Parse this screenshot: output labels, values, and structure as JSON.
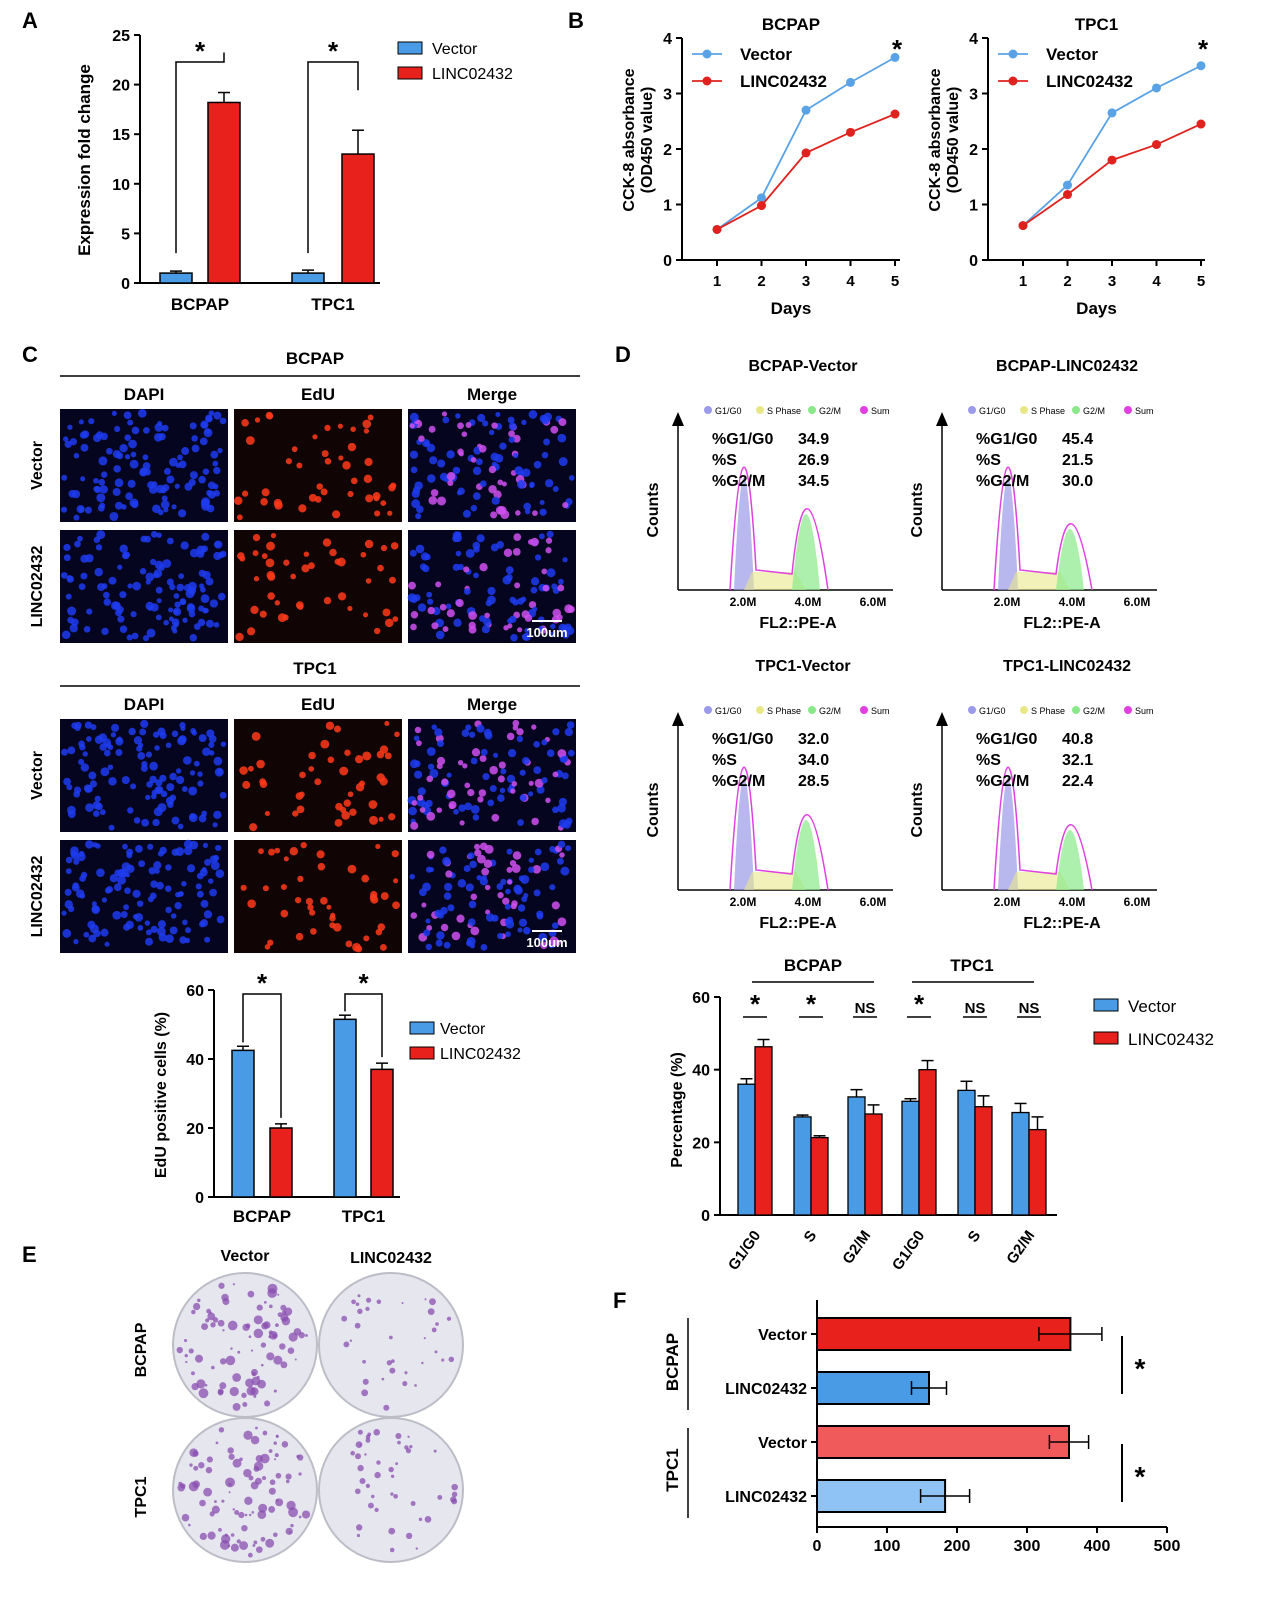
{
  "colors": {
    "vector": "#4a9be6",
    "linc": "#e8211d",
    "linc_light": "#f05a5a",
    "vector_light": "#8fc3f5",
    "line_vec": "#5aa2e6",
    "line_linc": "#e0221e",
    "dapi": "#1e3cf0",
    "edu": "#ff3a1a",
    "merge": "#d050f0",
    "dish": "#8a4db0"
  },
  "panel_letters": [
    "A",
    "B",
    "C",
    "D",
    "E",
    "F"
  ],
  "panelA": {
    "chart_data": {
      "type": "bar",
      "ylabel": "Expression fold change",
      "ylim": [
        0,
        25
      ],
      "yticks": [
        "0",
        "5",
        "10",
        "15",
        "20",
        "25"
      ],
      "categories": [
        "BCPAP",
        "TPC1"
      ],
      "series": [
        {
          "name": "Vector",
          "values": [
            1.0,
            1.0
          ],
          "errors": [
            0.2,
            0.3
          ]
        },
        {
          "name": "LINC02432",
          "values": [
            18.2,
            13.0
          ],
          "errors": [
            1.0,
            2.4
          ]
        }
      ],
      "sig": [
        "*",
        "*"
      ],
      "legend_placement": "top-right"
    }
  },
  "panelB": {
    "chart_data": [
      {
        "type": "line",
        "title": "BCPAP",
        "xlabel": "Days",
        "ylabel_line1": "CCK-8 absorbance",
        "ylabel_line2": "(OD450 value)",
        "ylim": [
          0,
          4
        ],
        "yticks": [
          "0",
          "1",
          "2",
          "3",
          "4"
        ],
        "x": [
          "1",
          "2",
          "3",
          "4",
          "5"
        ],
        "series": [
          {
            "name": "Vector",
            "values": [
              0.55,
              1.12,
              2.7,
              3.2,
              3.65
            ]
          },
          {
            "name": "LINC02432",
            "values": [
              0.55,
              0.98,
              1.93,
              2.3,
              2.63
            ]
          }
        ],
        "sig": "*",
        "legend_placement": "top-left"
      },
      {
        "type": "line",
        "title": "TPC1",
        "xlabel": "Days",
        "ylabel_line1": "CCK-8 absorbance",
        "ylabel_line2": "(OD450 value)",
        "ylim": [
          0,
          4
        ],
        "yticks": [
          "0",
          "1",
          "2",
          "3",
          "4"
        ],
        "x": [
          "1",
          "2",
          "3",
          "4",
          "5"
        ],
        "series": [
          {
            "name": "Vector",
            "values": [
              0.62,
              1.35,
              2.65,
              3.1,
              3.5
            ]
          },
          {
            "name": "LINC02432",
            "values": [
              0.62,
              1.18,
              1.8,
              2.08,
              2.45
            ]
          }
        ],
        "sig": "*",
        "legend_placement": "top-left"
      }
    ]
  },
  "panelC": {
    "groups": [
      {
        "title": "BCPAP",
        "columns": [
          "DAPI",
          "EdU",
          "Merge"
        ],
        "rows": [
          "Vector",
          "LINC02432"
        ],
        "scale": "100um"
      },
      {
        "title": "TPC1",
        "columns": [
          "DAPI",
          "EdU",
          "Merge"
        ],
        "rows": [
          "Vector",
          "LINC02432"
        ],
        "scale": "100um"
      }
    ],
    "chart_data": {
      "type": "bar",
      "ylabel": "EdU positive cells (%)",
      "ylim": [
        0,
        60
      ],
      "yticks": [
        "0",
        "20",
        "40",
        "60"
      ],
      "categories": [
        "BCPAP",
        "TPC1"
      ],
      "series": [
        {
          "name": "Vector",
          "values": [
            42.5,
            51.5
          ],
          "errors": [
            1.2,
            1.2
          ]
        },
        {
          "name": "LINC02432",
          "values": [
            20.0,
            37.0
          ],
          "errors": [
            1.2,
            1.8
          ]
        }
      ],
      "sig": [
        "*",
        "*"
      ],
      "legend_placement": "right"
    }
  },
  "panelD": {
    "histograms": [
      {
        "title": "BCPAP-Vector",
        "legend": [
          "G1/G0",
          "S Phase",
          "G2/M",
          "Sum"
        ],
        "labels": [
          "%G1/G0",
          "%S",
          "%G2/M"
        ],
        "values": [
          "34.9",
          "26.9",
          "34.5"
        ],
        "xticks": [
          "2.0M",
          "4.0M",
          "6.0M"
        ],
        "xlabel": "FL2::PE-A",
        "ylabel": "Counts"
      },
      {
        "title": "BCPAP-LINC02432",
        "legend": [
          "G1/G0",
          "S Phase",
          "G2/M",
          "Sum"
        ],
        "labels": [
          "%G1/G0",
          "%S",
          "%G2/M"
        ],
        "values": [
          "45.4",
          "21.5",
          "30.0"
        ],
        "xticks": [
          "2.0M",
          "4.0M",
          "6.0M"
        ],
        "xlabel": "FL2::PE-A",
        "ylabel": "Counts"
      },
      {
        "title": "TPC1-Vector",
        "legend": [
          "G1/G0",
          "S Phase",
          "G2/M",
          "Sum"
        ],
        "labels": [
          "%G1/G0",
          "%S",
          "%G2/M"
        ],
        "values": [
          "32.0",
          "34.0",
          "28.5"
        ],
        "xticks": [
          "2.0M",
          "4.0M",
          "6.0M"
        ],
        "xlabel": "FL2::PE-A",
        "ylabel": "Counts"
      },
      {
        "title": "TPC1-LINC02432",
        "legend": [
          "G1/G0",
          "S Phase",
          "G2/M",
          "Sum"
        ],
        "labels": [
          "%G1/G0",
          "%S",
          "%G2/M"
        ],
        "values": [
          "40.8",
          "32.1",
          "22.4"
        ],
        "xticks": [
          "2.0M",
          "4.0M",
          "6.0M"
        ],
        "xlabel": "FL2::PE-A",
        "ylabel": "Counts"
      }
    ],
    "legend_colors": [
      "#9a9ae8",
      "#e8e88a",
      "#8ae88a",
      "#e040e0"
    ],
    "chart_data": {
      "type": "bar",
      "ylabel": "Percentage (%)",
      "ylim": [
        0,
        60
      ],
      "yticks": [
        "0",
        "20",
        "40",
        "60"
      ],
      "group_labels": [
        "BCPAP",
        "TPC1"
      ],
      "categories": [
        "G1/G0",
        "S",
        "G2/M",
        "G1/G0",
        "S",
        "G2/M"
      ],
      "series": [
        {
          "name": "Vector",
          "values": [
            36,
            27,
            32.5,
            31.3,
            34.3,
            28.2
          ],
          "errors": [
            1.5,
            0.5,
            2,
            0.7,
            2.5,
            2.5
          ]
        },
        {
          "name": "LINC02432",
          "values": [
            46.3,
            21.3,
            27.8,
            40.0,
            29.8,
            23.5
          ],
          "errors": [
            2,
            0.5,
            2.5,
            2.5,
            3,
            3.5
          ]
        }
      ],
      "sig": [
        "*",
        "*",
        "NS",
        "*",
        "NS",
        "NS"
      ],
      "legend_placement": "right"
    }
  },
  "panelE": {
    "columns": [
      "Vector",
      "LINC02432"
    ],
    "rows": [
      "BCPAP",
      "TPC1"
    ]
  },
  "panelF": {
    "chart_data": {
      "type": "bar",
      "orientation": "horizontal",
      "xlim": [
        0,
        500
      ],
      "xticks": [
        "0",
        "100",
        "200",
        "300",
        "400",
        "500"
      ],
      "groups": [
        "BCPAP",
        "TPC1"
      ],
      "categories": [
        "Vector",
        "LINC02432",
        "Vector",
        "LINC02432"
      ],
      "values": [
        362,
        160,
        360,
        183
      ],
      "errors": [
        45,
        25,
        28,
        35
      ],
      "sig": [
        "*",
        "*"
      ]
    }
  }
}
